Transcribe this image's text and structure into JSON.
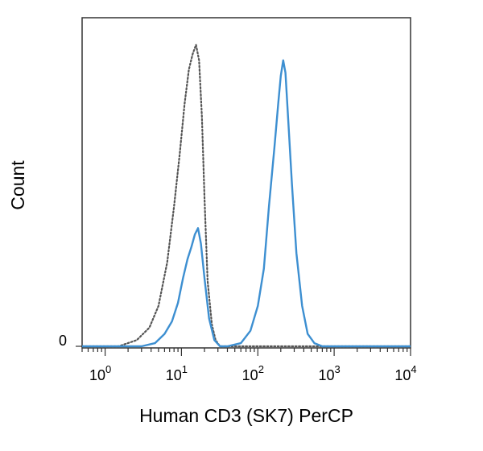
{
  "chart_data": {
    "type": "area",
    "xlabel": "Human CD3 (SK7) PerCP",
    "ylabel": "Count",
    "xscale": "log",
    "xlim": [
      0.5,
      10000
    ],
    "ylim": [
      0,
      1
    ],
    "x_ticks": [
      {
        "base": "10",
        "exp": "0",
        "value": 1
      },
      {
        "base": "10",
        "exp": "1",
        "value": 10
      },
      {
        "base": "10",
        "exp": "2",
        "value": 100
      },
      {
        "base": "10",
        "exp": "3",
        "value": 1000
      },
      {
        "base": "10",
        "exp": "4",
        "value": 10000
      }
    ],
    "y_ticks": [
      {
        "label": "0",
        "value": 0
      }
    ],
    "grid": false,
    "series": [
      {
        "style": "dotted",
        "color": "#555555",
        "x": [
          0.5,
          1.5,
          2.6,
          3.8,
          5.0,
          6.5,
          8.0,
          9.5,
          11.0,
          12.5,
          14.0,
          15.5,
          17.0,
          18.5,
          20.0,
          22.0,
          25.0,
          28.0,
          32.0,
          40.0,
          10000
        ],
        "y": [
          0.0,
          0.0,
          0.02,
          0.06,
          0.13,
          0.27,
          0.45,
          0.62,
          0.78,
          0.89,
          0.94,
          0.97,
          0.92,
          0.74,
          0.48,
          0.21,
          0.07,
          0.02,
          0.0,
          0.0,
          0.0
        ]
      },
      {
        "style": "solid",
        "color": "#3d8fd1",
        "x": [
          0.5,
          3.0,
          4.5,
          6.0,
          7.5,
          9.0,
          10.5,
          12.0,
          13.5,
          15.0,
          16.5,
          18.0,
          20.0,
          23.0,
          27.0,
          32.0,
          40.0,
          60.0,
          80.0,
          100.0,
          120.0,
          140.0,
          165.0,
          185.0,
          200.0,
          215.0,
          230.0,
          250.0,
          280.0,
          320.0,
          380.0,
          450.0,
          550.0,
          700.0,
          10000
        ],
        "y": [
          0.0,
          0.0,
          0.01,
          0.04,
          0.08,
          0.14,
          0.22,
          0.28,
          0.32,
          0.36,
          0.38,
          0.33,
          0.22,
          0.09,
          0.02,
          0.0,
          0.0,
          0.01,
          0.05,
          0.13,
          0.25,
          0.45,
          0.64,
          0.78,
          0.87,
          0.92,
          0.88,
          0.73,
          0.52,
          0.3,
          0.13,
          0.04,
          0.01,
          0.0,
          0.0
        ]
      }
    ]
  }
}
